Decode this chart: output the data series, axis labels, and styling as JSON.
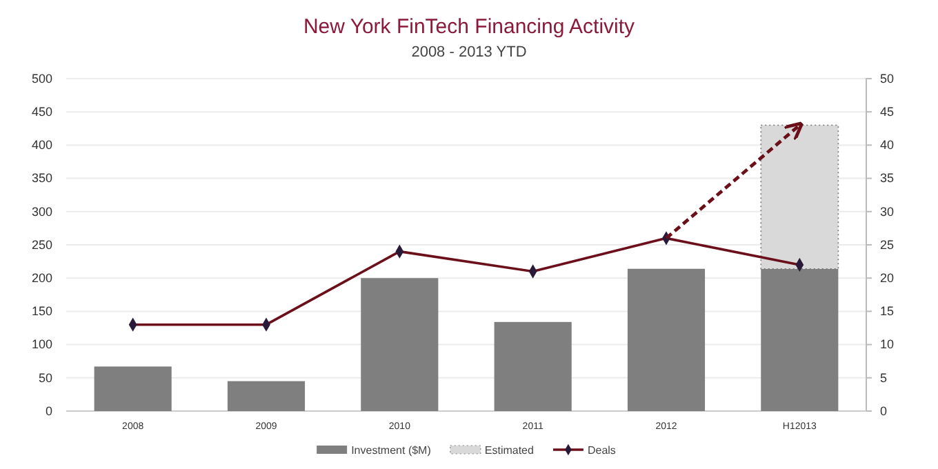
{
  "chart_data": {
    "type": "bar",
    "title": "New York FinTech Financing Activity",
    "subtitle": "2008 - 2013 YTD",
    "categories": [
      "2008",
      "2009",
      "2010",
      "2011",
      "2012",
      "H12013"
    ],
    "stacked": true,
    "series": [
      {
        "name": "Investment ($M)",
        "color": "#7f7f7f",
        "values": [
          67,
          45,
          200,
          134,
          214,
          214
        ]
      },
      {
        "name": "Estimated",
        "color": "#d9d9d9",
        "line_style": "dotted",
        "values": [
          null,
          null,
          null,
          null,
          null,
          216
        ]
      },
      {
        "name": "Deals",
        "type": "line",
        "axis": "y2",
        "color": "#6b0f1a",
        "marker": "diamond",
        "values": [
          13,
          13,
          24,
          21,
          26,
          22
        ]
      },
      {
        "type": "line",
        "axis": "y2",
        "color": "#6b0f1a",
        "line_style": "dashed",
        "marker": "none",
        "values": [
          null,
          null,
          null,
          null,
          26,
          43
        ]
      }
    ],
    "ylim": [
      0,
      500
    ],
    "yticks": [
      0,
      50,
      100,
      150,
      200,
      250,
      300,
      350,
      400,
      450,
      500
    ],
    "y2lim": [
      0,
      50
    ],
    "y2ticks": [
      0,
      5,
      10,
      15,
      20,
      25,
      30,
      35,
      40,
      45,
      50
    ],
    "grid": "y",
    "legend": "bottom"
  }
}
